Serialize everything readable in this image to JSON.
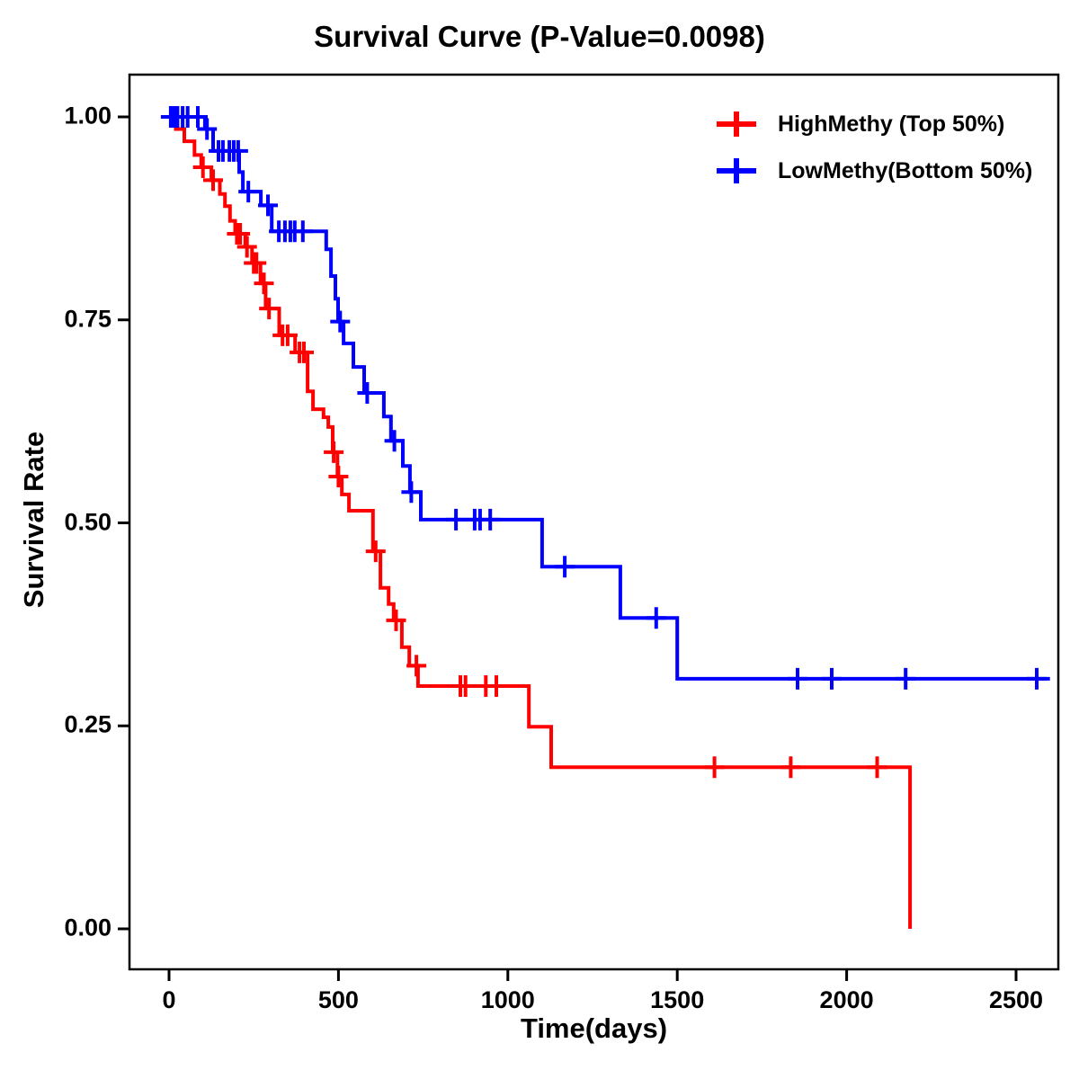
{
  "title": "Survival Curve (P-Value=0.0098)",
  "chart_data": {
    "type": "line",
    "subtype": "kaplan-meier-step-curve",
    "title": "Survival Curve (P-Value=0.0098)",
    "p_value": "0.0098",
    "xlabel": "Time(days)",
    "ylabel": "Survival Rate",
    "x_ticks": [
      "0",
      "500",
      "1000",
      "1500",
      "2000",
      "2500"
    ],
    "y_ticks": [
      "1.00",
      "0.75",
      "0.50",
      "0.25",
      "0.00"
    ],
    "xlim": [
      -120,
      2625
    ],
    "ylim": [
      -0.05,
      1.05
    ],
    "grid": false,
    "background": "#ffffff",
    "axis_color": "#000000",
    "legend_position": "top-right",
    "series": [
      {
        "name": "HighMethy (Top 50%)",
        "color": "#ff0000",
        "marker": "plus-censor",
        "end_day": 2187,
        "steps": [
          [
            20,
            0.985
          ],
          [
            45,
            0.97
          ],
          [
            75,
            0.953
          ],
          [
            95,
            0.938
          ],
          [
            125,
            0.922
          ],
          [
            150,
            0.905
          ],
          [
            165,
            0.89
          ],
          [
            180,
            0.872
          ],
          [
            195,
            0.856
          ],
          [
            225,
            0.84
          ],
          [
            245,
            0.82
          ],
          [
            270,
            0.795
          ],
          [
            285,
            0.764
          ],
          [
            325,
            0.731
          ],
          [
            372,
            0.71
          ],
          [
            409,
            0.662
          ],
          [
            425,
            0.64
          ],
          [
            456,
            0.63
          ],
          [
            470,
            0.618
          ],
          [
            483,
            0.587
          ],
          [
            497,
            0.557
          ],
          [
            510,
            0.535
          ],
          [
            531,
            0.515
          ],
          [
            602,
            0.465
          ],
          [
            624,
            0.42
          ],
          [
            648,
            0.4
          ],
          [
            663,
            0.38
          ],
          [
            687,
            0.347
          ],
          [
            709,
            0.324
          ],
          [
            735,
            0.299
          ],
          [
            1062,
            0.249
          ],
          [
            1128,
            0.199
          ],
          [
            2187,
            0.0
          ]
        ],
        "censors": [
          [
            8,
            1.0
          ],
          [
            100,
            0.938
          ],
          [
            130,
            0.922
          ],
          [
            200,
            0.856
          ],
          [
            210,
            0.856
          ],
          [
            230,
            0.84
          ],
          [
            250,
            0.82
          ],
          [
            258,
            0.82
          ],
          [
            280,
            0.795
          ],
          [
            295,
            0.764
          ],
          [
            335,
            0.731
          ],
          [
            350,
            0.731
          ],
          [
            385,
            0.71
          ],
          [
            398,
            0.71
          ],
          [
            486,
            0.587
          ],
          [
            500,
            0.557
          ],
          [
            610,
            0.465
          ],
          [
            670,
            0.38
          ],
          [
            730,
            0.324
          ],
          [
            860,
            0.299
          ],
          [
            875,
            0.299
          ],
          [
            935,
            0.299
          ],
          [
            966,
            0.299
          ],
          [
            1610,
            0.199
          ],
          [
            1835,
            0.199
          ],
          [
            2090,
            0.199
          ]
        ]
      },
      {
        "name": "LowMethy(Bottom 50%)",
        "color": "#0000ff",
        "marker": "plus-censor",
        "end_day": 2600,
        "steps": [
          [
            106,
            0.985
          ],
          [
            130,
            0.958
          ],
          [
            207,
            0.932
          ],
          [
            218,
            0.908
          ],
          [
            271,
            0.891
          ],
          [
            303,
            0.859
          ],
          [
            464,
            0.837
          ],
          [
            478,
            0.804
          ],
          [
            491,
            0.776
          ],
          [
            499,
            0.748
          ],
          [
            515,
            0.721
          ],
          [
            544,
            0.692
          ],
          [
            576,
            0.66
          ],
          [
            634,
            0.631
          ],
          [
            655,
            0.601
          ],
          [
            690,
            0.57
          ],
          [
            711,
            0.538
          ],
          [
            743,
            0.504
          ],
          [
            1101,
            0.446
          ],
          [
            1332,
            0.383
          ],
          [
            1500,
            0.308
          ]
        ],
        "censors": [
          [
            5,
            1.0
          ],
          [
            15,
            1.0
          ],
          [
            25,
            1.0
          ],
          [
            40,
            1.0
          ],
          [
            55,
            1.0
          ],
          [
            85,
            1.0
          ],
          [
            112,
            0.985
          ],
          [
            146,
            0.958
          ],
          [
            159,
            0.958
          ],
          [
            178,
            0.958
          ],
          [
            191,
            0.958
          ],
          [
            204,
            0.958
          ],
          [
            234,
            0.908
          ],
          [
            292,
            0.891
          ],
          [
            324,
            0.859
          ],
          [
            342,
            0.859
          ],
          [
            358,
            0.859
          ],
          [
            371,
            0.859
          ],
          [
            395,
            0.859
          ],
          [
            505,
            0.748
          ],
          [
            585,
            0.66
          ],
          [
            665,
            0.601
          ],
          [
            715,
            0.538
          ],
          [
            847,
            0.504
          ],
          [
            902,
            0.504
          ],
          [
            918,
            0.504
          ],
          [
            948,
            0.504
          ],
          [
            1168,
            0.446
          ],
          [
            1438,
            0.383
          ],
          [
            1855,
            0.308
          ],
          [
            1956,
            0.308
          ],
          [
            2174,
            0.308
          ],
          [
            2561,
            0.308
          ]
        ]
      }
    ]
  }
}
